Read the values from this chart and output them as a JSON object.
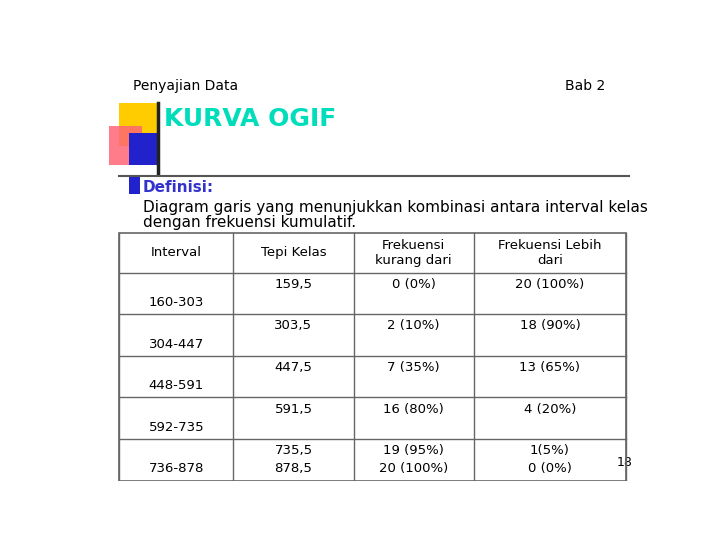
{
  "title_left": "Penyajian Data",
  "title_right": "Bab 2",
  "heading": "KURVA OGIF",
  "definisi_label": "Definisi:",
  "definisi_line1": "Diagram garis yang menunjukkan kombinasi antara interval kelas",
  "definisi_line2": "dengan frekuensi kumulatif.",
  "table_headers": [
    "Interval",
    "Tepi Kelas",
    "Frekuensi\nkurang dari",
    "Frekuensi Lebih\ndari"
  ],
  "row_data": [
    {
      "interval": "160-303",
      "tepi": "159,5",
      "fk_less": "0 (0%)",
      "fk_more": "20 (100%)"
    },
    {
      "interval": "304-447",
      "tepi": "303,5",
      "fk_less": "2 (10%)",
      "fk_more": "18 (90%)"
    },
    {
      "interval": "448-591",
      "tepi": "447,5",
      "fk_less": "7 (35%)",
      "fk_more": "13 (65%)"
    },
    {
      "interval": "592-735",
      "tepi": "591,5",
      "fk_less": "16 (80%)",
      "fk_more": "4 (20%)"
    },
    {
      "interval": "736-878",
      "tepi": "735,5",
      "fk_less": "19 (95%)",
      "fk_more": "1(5%)"
    }
  ],
  "extra_tepi": "878,5",
  "extra_fk_less": "20 (100%)",
  "extra_fk_more": "0 (0%)",
  "page_number": "18",
  "bg_color": "#ffffff",
  "heading_color": "#00ddbb",
  "definisi_color": "#3333cc",
  "grid_color": "#666666",
  "text_color": "#000000",
  "title_fontsize": 10,
  "heading_fontsize": 18,
  "definisi_fontsize": 10,
  "table_fontsize": 9.5,
  "deco_yellow": "#ffcc00",
  "deco_pink": "#ff6677",
  "deco_blue": "#2222cc",
  "line_color": "#444444"
}
